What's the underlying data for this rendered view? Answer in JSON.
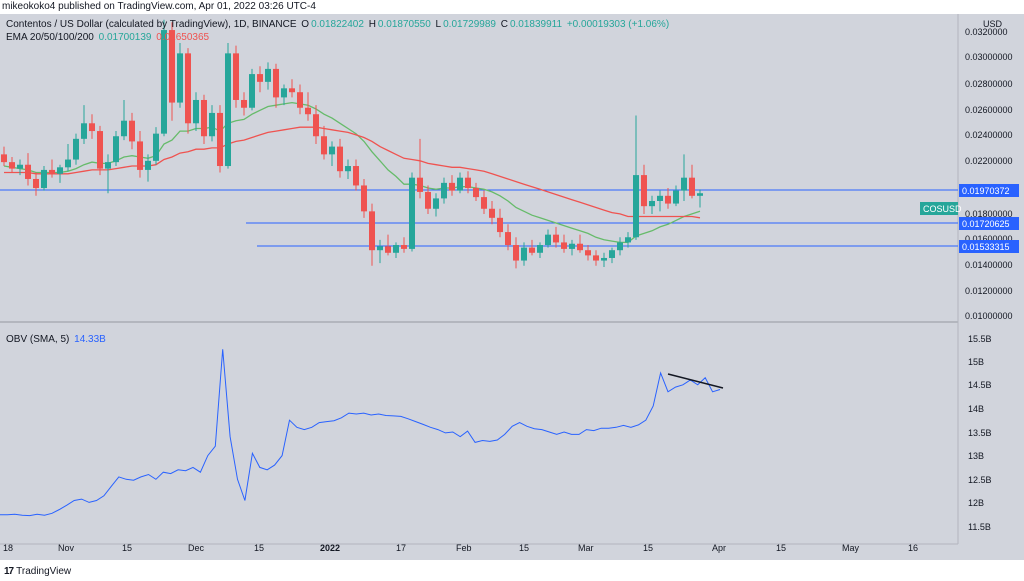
{
  "header": {
    "published": "mikeokoko4 published on TradingView.com, Apr 01, 2022 03:26 UTC-4"
  },
  "price_legend": {
    "title": "Contentos / US Dollar (calculated by TradingView), 1D, BINANCE",
    "o_label": "O",
    "o": "0.01822402",
    "h_label": "H",
    "h": "0.01870550",
    "l_label": "L",
    "l": "0.01729989",
    "c_label": "C",
    "c": "0.01839911",
    "change": "+0.00019303 (+1.06%)",
    "ema_label": "EMA 20/50/100/200",
    "ema_a": "0.01700139",
    "ema_b": "0.01650365"
  },
  "obv_legend": {
    "label": "OBV (SMA, 5)",
    "value": "14.33B"
  },
  "price_axis": {
    "currency": "USD",
    "ticks": [
      "0.03000000",
      "0.02800000",
      "0.02600000",
      "0.02400000",
      "0.02200000",
      "0.01800000",
      "0.01600000",
      "0.01400000",
      "0.01200000",
      "0.01000000"
    ],
    "partial_top": "0.0320000"
  },
  "obv_axis": {
    "ticks": [
      "15.5B",
      "15B",
      "14.5B",
      "14B",
      "13.5B",
      "13B",
      "12.5B",
      "12B",
      "11.5B"
    ]
  },
  "price_tags": {
    "resistance": "0.01970372",
    "symbol": "COSUSD",
    "ema_support": "0.01720625",
    "support": "0.01533315"
  },
  "time_axis": [
    "18",
    "Nov",
    "15",
    "Dec",
    "15",
    "2022",
    "17",
    "Feb",
    "15",
    "Mar",
    "15",
    "Apr",
    "15",
    "May",
    "16"
  ],
  "brand": "TradingView",
  "colors": {
    "up": "#26a69a",
    "down": "#ef5350",
    "ema_green": "#66bb6a",
    "ema_red": "#ef5350",
    "obv": "#2962ff",
    "level": "#2962ff",
    "background": "#d1d4dc"
  },
  "chart_data": [
    {
      "type": "candlestick",
      "title": "Contentos / US Dollar (calculated by TradingView), 1D, BINANCE",
      "ylabel": "USD",
      "ylim": [
        0.0095,
        0.0325
      ],
      "grid": false,
      "series": [
        {
          "name": "COSUSD",
          "ohlc": [
            [
              0.0214,
              0.022,
              0.0205,
              0.0208
            ],
            [
              0.0208,
              0.0212,
              0.02,
              0.0203
            ],
            [
              0.0203,
              0.021,
              0.0198,
              0.0206
            ],
            [
              0.0206,
              0.0215,
              0.019,
              0.0195
            ],
            [
              0.0195,
              0.02,
              0.0182,
              0.0188
            ],
            [
              0.0188,
              0.0205,
              0.0186,
              0.0202
            ],
            [
              0.0202,
              0.021,
              0.0196,
              0.0199
            ],
            [
              0.0199,
              0.0206,
              0.0192,
              0.0204
            ],
            [
              0.0204,
              0.0222,
              0.0201,
              0.021
            ],
            [
              0.021,
              0.023,
              0.0206,
              0.0226
            ],
            [
              0.0226,
              0.0252,
              0.0222,
              0.0238
            ],
            [
              0.0238,
              0.0245,
              0.0226,
              0.0232
            ],
            [
              0.0232,
              0.0236,
              0.0198,
              0.0203
            ],
            [
              0.0203,
              0.0214,
              0.0184,
              0.0208
            ],
            [
              0.0208,
              0.0232,
              0.0205,
              0.0228
            ],
            [
              0.0228,
              0.0256,
              0.0225,
              0.024
            ],
            [
              0.024,
              0.0246,
              0.0218,
              0.0224
            ],
            [
              0.0224,
              0.0232,
              0.0196,
              0.0202
            ],
            [
              0.0202,
              0.0214,
              0.0193,
              0.0209
            ],
            [
              0.0209,
              0.0235,
              0.0206,
              0.023
            ],
            [
              0.023,
              0.0318,
              0.0228,
              0.031
            ],
            [
              0.031,
              0.0316,
              0.024,
              0.0254
            ],
            [
              0.0254,
              0.03,
              0.025,
              0.0292
            ],
            [
              0.0292,
              0.0296,
              0.023,
              0.0238
            ],
            [
              0.0238,
              0.0262,
              0.0232,
              0.0256
            ],
            [
              0.0256,
              0.026,
              0.0222,
              0.0228
            ],
            [
              0.0228,
              0.0252,
              0.0224,
              0.0246
            ],
            [
              0.0246,
              0.0252,
              0.02,
              0.0205
            ],
            [
              0.0205,
              0.03,
              0.0203,
              0.0292
            ],
            [
              0.0292,
              0.0298,
              0.025,
              0.0256
            ],
            [
              0.0256,
              0.0262,
              0.0244,
              0.025
            ],
            [
              0.025,
              0.028,
              0.0248,
              0.0276
            ],
            [
              0.0276,
              0.0282,
              0.0262,
              0.027
            ],
            [
              0.027,
              0.0285,
              0.0264,
              0.028
            ],
            [
              0.028,
              0.0284,
              0.025,
              0.0258
            ],
            [
              0.0258,
              0.0268,
              0.0252,
              0.0265
            ],
            [
              0.0265,
              0.0272,
              0.0258,
              0.0262
            ],
            [
              0.0262,
              0.0268,
              0.0245,
              0.025
            ],
            [
              0.025,
              0.0262,
              0.024,
              0.0245
            ],
            [
              0.0245,
              0.0252,
              0.0222,
              0.0228
            ],
            [
              0.0228,
              0.0236,
              0.021,
              0.0214
            ],
            [
              0.0214,
              0.0224,
              0.0205,
              0.022
            ],
            [
              0.022,
              0.0226,
              0.0196,
              0.0201
            ],
            [
              0.0201,
              0.021,
              0.0195,
              0.0205
            ],
            [
              0.0205,
              0.021,
              0.0186,
              0.019
            ],
            [
              0.019,
              0.0195,
              0.0165,
              0.017
            ],
            [
              0.017,
              0.0176,
              0.0128,
              0.014
            ],
            [
              0.014,
              0.0148,
              0.013,
              0.0143
            ],
            [
              0.0143,
              0.0152,
              0.0136,
              0.0138
            ],
            [
              0.0138,
              0.0146,
              0.0134,
              0.0144
            ],
            [
              0.0144,
              0.015,
              0.0138,
              0.0141
            ],
            [
              0.0141,
              0.02,
              0.0139,
              0.0196
            ],
            [
              0.0196,
              0.0226,
              0.018,
              0.0185
            ],
            [
              0.0185,
              0.019,
              0.0168,
              0.0172
            ],
            [
              0.0172,
              0.0184,
              0.0166,
              0.018
            ],
            [
              0.018,
              0.0196,
              0.0176,
              0.0192
            ],
            [
              0.0192,
              0.0198,
              0.0182,
              0.0186
            ],
            [
              0.0186,
              0.02,
              0.0184,
              0.0196
            ],
            [
              0.0196,
              0.0201,
              0.0184,
              0.0188
            ],
            [
              0.0188,
              0.0192,
              0.0178,
              0.0181
            ],
            [
              0.0181,
              0.0186,
              0.0168,
              0.0172
            ],
            [
              0.0172,
              0.0178,
              0.016,
              0.0165
            ],
            [
              0.0165,
              0.0172,
              0.015,
              0.0154
            ],
            [
              0.0154,
              0.016,
              0.014,
              0.0144
            ],
            [
              0.0144,
              0.015,
              0.0126,
              0.0132
            ],
            [
              0.0132,
              0.0146,
              0.0128,
              0.0142
            ],
            [
              0.0142,
              0.0148,
              0.0136,
              0.0138
            ],
            [
              0.0138,
              0.0146,
              0.0134,
              0.0144
            ],
            [
              0.0144,
              0.0156,
              0.0142,
              0.0152
            ],
            [
              0.0152,
              0.0158,
              0.0142,
              0.0146
            ],
            [
              0.0146,
              0.0152,
              0.0138,
              0.0141
            ],
            [
              0.0141,
              0.0148,
              0.0136,
              0.0145
            ],
            [
              0.0145,
              0.0152,
              0.0138,
              0.014
            ],
            [
              0.014,
              0.0144,
              0.0132,
              0.0136
            ],
            [
              0.0136,
              0.014,
              0.0128,
              0.0132
            ],
            [
              0.0132,
              0.0138,
              0.0127,
              0.0134
            ],
            [
              0.0134,
              0.0142,
              0.013,
              0.014
            ],
            [
              0.014,
              0.015,
              0.0136,
              0.0146
            ],
            [
              0.0146,
              0.0154,
              0.0142,
              0.015
            ],
            [
              0.015,
              0.0244,
              0.0148,
              0.0198
            ],
            [
              0.0198,
              0.0206,
              0.0168,
              0.0174
            ],
            [
              0.0174,
              0.0182,
              0.0168,
              0.0178
            ],
            [
              0.0178,
              0.0186,
              0.017,
              0.0182
            ],
            [
              0.0182,
              0.0188,
              0.0172,
              0.0176
            ],
            [
              0.0176,
              0.019,
              0.0174,
              0.0186
            ],
            [
              0.0186,
              0.0214,
              0.0178,
              0.0196
            ],
            [
              0.0196,
              0.0206,
              0.018,
              0.0182
            ],
            [
              0.0182,
              0.0187,
              0.0173,
              0.0184
            ]
          ]
        },
        {
          "name": "EMA 20",
          "values": [
            0.0205,
            0.0204,
            0.0203,
            0.0202,
            0.02,
            0.02,
            0.02,
            0.02,
            0.0201,
            0.0203,
            0.0206,
            0.0208,
            0.0207,
            0.0207,
            0.0209,
            0.0212,
            0.0213,
            0.0212,
            0.0211,
            0.0213,
            0.0222,
            0.0225,
            0.0232,
            0.0232,
            0.0234,
            0.0234,
            0.0235,
            0.0232,
            0.0238,
            0.024,
            0.0241,
            0.0245,
            0.0248,
            0.0251,
            0.0252,
            0.0253,
            0.0254,
            0.0253,
            0.0252,
            0.0249,
            0.0245,
            0.0242,
            0.0238,
            0.0234,
            0.023,
            0.0224,
            0.0216,
            0.0209,
            0.0202,
            0.0197,
            0.0191,
            0.0191,
            0.019,
            0.0188,
            0.0187,
            0.0188,
            0.0188,
            0.0189,
            0.0189,
            0.0188,
            0.0187,
            0.0185,
            0.0182,
            0.0178,
            0.0173,
            0.017,
            0.0167,
            0.0165,
            0.0163,
            0.0161,
            0.0159,
            0.0157,
            0.0155,
            0.0153,
            0.015,
            0.0148,
            0.0147,
            0.0146,
            0.0146,
            0.0151,
            0.0153,
            0.0155,
            0.0158,
            0.016,
            0.0163,
            0.0166,
            0.0168,
            0.017
          ]
        },
        {
          "name": "EMA 50",
          "values": [
            0.02,
            0.02,
            0.02,
            0.02,
            0.0199,
            0.0199,
            0.0199,
            0.0199,
            0.0199,
            0.02,
            0.0201,
            0.0202,
            0.0202,
            0.0202,
            0.0203,
            0.0204,
            0.0205,
            0.0205,
            0.0205,
            0.0206,
            0.021,
            0.0212,
            0.0215,
            0.0216,
            0.0218,
            0.0218,
            0.0219,
            0.0219,
            0.0222,
            0.0224,
            0.0225,
            0.0227,
            0.0229,
            0.0231,
            0.0232,
            0.0233,
            0.0234,
            0.0235,
            0.0235,
            0.0235,
            0.0234,
            0.0233,
            0.0232,
            0.0231,
            0.0229,
            0.0227,
            0.0224,
            0.022,
            0.0217,
            0.0214,
            0.0211,
            0.021,
            0.0209,
            0.0207,
            0.0206,
            0.0205,
            0.0204,
            0.0204,
            0.0203,
            0.0202,
            0.0201,
            0.0199,
            0.0197,
            0.0195,
            0.0193,
            0.0191,
            0.0189,
            0.0187,
            0.0185,
            0.0183,
            0.0181,
            0.0179,
            0.0177,
            0.0175,
            0.0173,
            0.0171,
            0.0169,
            0.0168,
            0.0166,
            0.0166,
            0.0166,
            0.0166,
            0.0166,
            0.0166,
            0.0166,
            0.0166,
            0.0166,
            0.0165
          ]
        }
      ]
    },
    {
      "type": "line",
      "title": "OBV (SMA, 5)",
      "ylabel": "",
      "ylim": [
        11.3,
        15.8
      ],
      "grid": false,
      "series": [
        {
          "name": "OBV",
          "values": [
            11.75,
            11.75,
            11.76,
            11.74,
            11.73,
            11.76,
            11.74,
            11.78,
            11.86,
            11.95,
            12.05,
            12.08,
            12.01,
            12.05,
            12.15,
            12.35,
            12.55,
            12.5,
            12.48,
            12.55,
            12.6,
            12.5,
            12.65,
            12.62,
            12.7,
            12.68,
            12.75,
            12.65,
            13.0,
            13.2,
            15.25,
            13.4,
            12.5,
            12.05,
            13.05,
            12.75,
            12.7,
            12.8,
            13.0,
            13.75,
            13.6,
            13.55,
            13.6,
            13.7,
            13.72,
            13.74,
            13.8,
            13.9,
            13.88,
            13.9,
            13.86,
            13.88,
            13.85,
            13.84,
            13.83,
            13.78,
            13.72,
            13.66,
            13.6,
            13.55,
            13.48,
            13.5,
            13.4,
            13.52,
            13.28,
            13.32,
            13.3,
            13.33,
            13.45,
            13.62,
            13.7,
            13.62,
            13.57,
            13.55,
            13.5,
            13.45,
            13.5,
            13.45,
            13.45,
            13.55,
            13.53,
            13.58,
            13.58,
            13.6,
            13.64,
            13.6,
            13.65,
            13.75,
            14.05,
            14.75,
            14.35,
            14.45,
            14.5,
            14.6,
            14.5,
            14.65,
            14.35,
            14.4
          ]
        }
      ]
    }
  ]
}
